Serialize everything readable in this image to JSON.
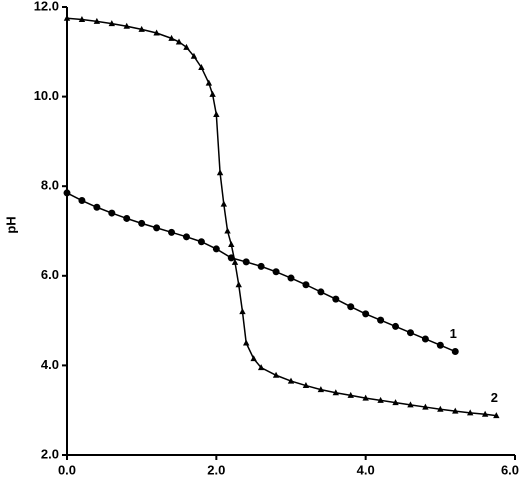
{
  "chart_data": {
    "type": "line",
    "y_label": "pH",
    "xlim": [
      0,
      6
    ],
    "ylim": [
      2,
      12
    ],
    "xticks": [
      {
        "value": 0,
        "label": "0.0"
      },
      {
        "value": 2,
        "label": "2.0"
      },
      {
        "value": 4,
        "label": "4.0"
      },
      {
        "value": 6,
        "label": "6.0"
      }
    ],
    "yticks": [
      {
        "value": 2,
        "label": "2.0"
      },
      {
        "value": 4,
        "label": "4.0"
      },
      {
        "value": 6,
        "label": "6.0"
      },
      {
        "value": 8,
        "label": "8.0"
      },
      {
        "value": 10,
        "label": "10.0"
      },
      {
        "value": 12,
        "label": "12.0"
      }
    ],
    "series": [
      {
        "name": "1",
        "color": "#000000",
        "marker": "circle",
        "x": [
          0,
          0.2,
          0.4,
          0.6,
          0.8,
          1.0,
          1.2,
          1.4,
          1.6,
          1.8,
          2.0,
          2.2,
          2.4,
          2.6,
          2.8,
          3.0,
          3.2,
          3.4,
          3.6,
          3.8,
          4.0,
          4.2,
          4.4,
          4.6,
          4.8,
          5.0,
          5.2
        ],
        "values": [
          7.85,
          7.68,
          7.53,
          7.4,
          7.28,
          7.17,
          7.07,
          6.97,
          6.87,
          6.76,
          6.6,
          6.4,
          6.31,
          6.21,
          6.09,
          5.95,
          5.8,
          5.64,
          5.48,
          5.31,
          5.15,
          5.01,
          4.87,
          4.73,
          4.59,
          4.45,
          4.31
        ]
      },
      {
        "name": "2",
        "color": "#000000",
        "marker": "triangle",
        "x": [
          0,
          0.2,
          0.4,
          0.6,
          0.8,
          1.0,
          1.2,
          1.4,
          1.5,
          1.6,
          1.7,
          1.8,
          1.9,
          1.95,
          2.0,
          2.05,
          2.1,
          2.15,
          2.2,
          2.25,
          2.3,
          2.35,
          2.4,
          2.5,
          2.6,
          2.8,
          3.0,
          3.2,
          3.4,
          3.6,
          3.8,
          4.0,
          4.2,
          4.4,
          4.6,
          4.8,
          5.0,
          5.2,
          5.4,
          5.6,
          5.75
        ],
        "values": [
          11.75,
          11.72,
          11.68,
          11.63,
          11.57,
          11.5,
          11.42,
          11.3,
          11.22,
          11.1,
          10.9,
          10.65,
          10.3,
          10.05,
          9.6,
          8.3,
          7.6,
          7.0,
          6.7,
          6.3,
          5.8,
          5.2,
          4.5,
          4.15,
          3.95,
          3.78,
          3.65,
          3.55,
          3.46,
          3.39,
          3.33,
          3.27,
          3.22,
          3.17,
          3.12,
          3.07,
          3.02,
          2.98,
          2.94,
          2.91,
          2.88
        ]
      }
    ]
  }
}
